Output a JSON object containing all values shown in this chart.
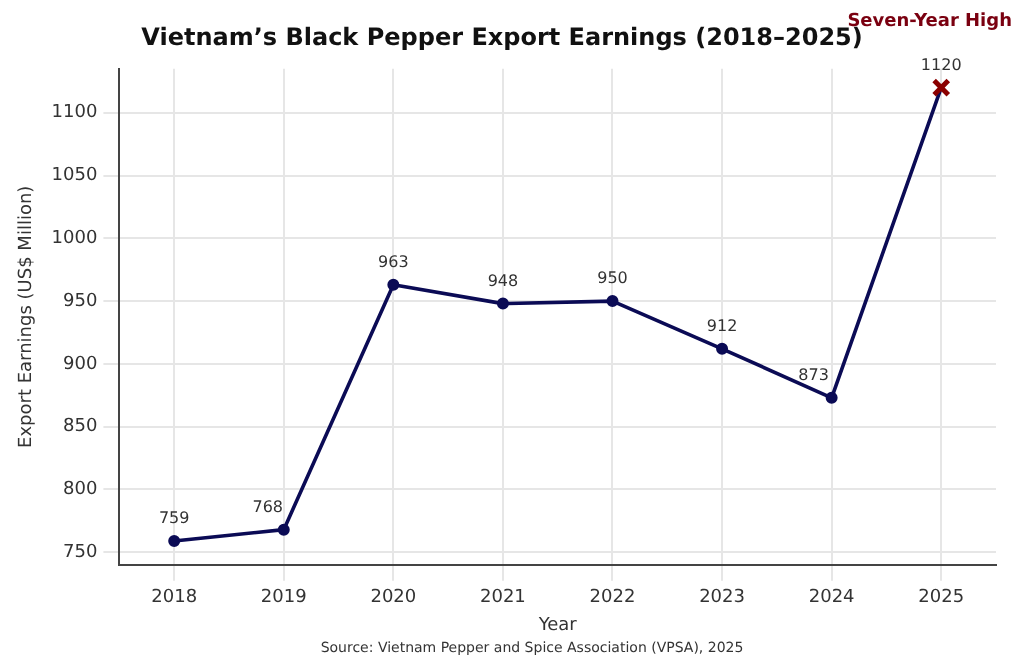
{
  "chart_data": {
    "type": "line",
    "title": "Vietnam’s Black Pepper Export Earnings (2018–2025)",
    "xlabel": "Year",
    "ylabel": "Export Earnings (US$ Million)",
    "categories": [
      "2018",
      "2019",
      "2020",
      "2021",
      "2022",
      "2023",
      "2024",
      "2025"
    ],
    "series": [
      {
        "color": "#0b0b55",
        "colors": [
          "#0b0b55",
          "#0b0b55",
          "#0b0b55",
          "#0b0b55",
          "#0b0b55",
          "#0b0b55",
          "#0b0b55",
          "#8b0000"
        ],
        "values": [
          759,
          768,
          963,
          948,
          950,
          912,
          873,
          1120
        ]
      }
    ],
    "ylim": [
      740,
      1135
    ],
    "yticks": [
      750,
      800,
      850,
      900,
      950,
      1000,
      1050,
      1100
    ],
    "grid": true,
    "legend": false,
    "marker": "circle",
    "line_style": "solid",
    "data_labels": true,
    "annotations": [
      "Seven-Year High",
      "Source: Vietnam Pepper and Spice Association (VPSA), 2025"
    ]
  }
}
